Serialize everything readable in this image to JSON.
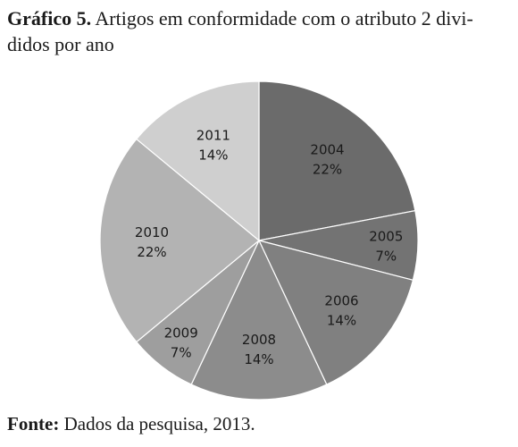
{
  "figure": {
    "caption_label": "Gráfico 5.",
    "caption_text": " Artigos em conformidade com o atributo 2 divi-didos por ano",
    "source_label": "Fonte:",
    "source_text": " Dados da pesquisa, 2013."
  },
  "chart_data": {
    "type": "pie",
    "title": "Artigos em conformidade com o atributo 2 divididos por ano",
    "start_angle_deg": 0,
    "direction": "clockwise",
    "slices": [
      {
        "label": "2004",
        "value": 22,
        "display": "22%",
        "color": "#6b6b6b"
      },
      {
        "label": "2005",
        "value": 7,
        "display": "7%",
        "color": "#737373"
      },
      {
        "label": "2006",
        "value": 14,
        "display": "14%",
        "color": "#808080"
      },
      {
        "label": "2008",
        "value": 14,
        "display": "14%",
        "color": "#8c8c8c"
      },
      {
        "label": "2009",
        "value": 7,
        "display": "7%",
        "color": "#9e9e9e"
      },
      {
        "label": "2010",
        "value": 22,
        "display": "22%",
        "color": "#b3b3b3"
      },
      {
        "label": "2011",
        "value": 14,
        "display": "14%",
        "color": "#cfcfcf"
      }
    ]
  }
}
